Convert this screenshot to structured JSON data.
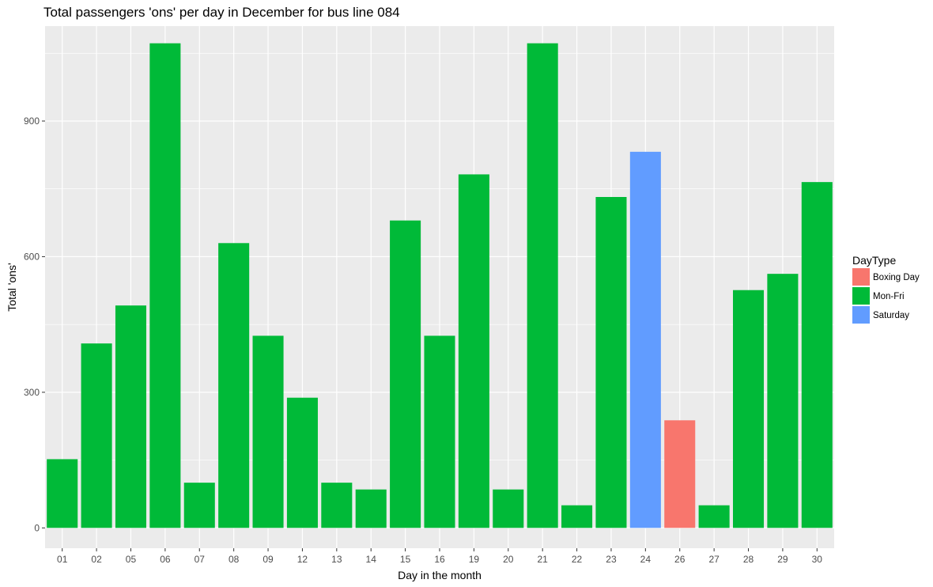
{
  "chart_data": {
    "type": "bar",
    "title": "Total passengers 'ons' per day in December for bus line 084",
    "xlabel": "Day in the month",
    "ylabel": "Total 'ons'",
    "ylim": [
      -45,
      1110
    ],
    "yticks": [
      0,
      300,
      600,
      900
    ],
    "grid": true,
    "legend": {
      "title": "DayType",
      "position": "right",
      "entries": [
        {
          "label": "Boxing Day",
          "color": "#F8766D"
        },
        {
          "label": "Mon-Fri",
          "color": "#00BA38"
        },
        {
          "label": "Saturday",
          "color": "#619CFF"
        }
      ]
    },
    "categories": [
      "01",
      "02",
      "05",
      "06",
      "07",
      "08",
      "09",
      "12",
      "13",
      "14",
      "15",
      "16",
      "19",
      "20",
      "21",
      "22",
      "23",
      "24",
      "26",
      "27",
      "28",
      "29",
      "30"
    ],
    "values": [
      152,
      408,
      492,
      1072,
      100,
      630,
      425,
      288,
      100,
      85,
      680,
      425,
      782,
      85,
      1072,
      50,
      732,
      832,
      238,
      50,
      526,
      562,
      765
    ],
    "day_types": [
      "Mon-Fri",
      "Mon-Fri",
      "Mon-Fri",
      "Mon-Fri",
      "Mon-Fri",
      "Mon-Fri",
      "Mon-Fri",
      "Mon-Fri",
      "Mon-Fri",
      "Mon-Fri",
      "Mon-Fri",
      "Mon-Fri",
      "Mon-Fri",
      "Mon-Fri",
      "Mon-Fri",
      "Mon-Fri",
      "Mon-Fri",
      "Saturday",
      "Boxing Day",
      "Mon-Fri",
      "Mon-Fri",
      "Mon-Fri",
      "Mon-Fri"
    ]
  }
}
